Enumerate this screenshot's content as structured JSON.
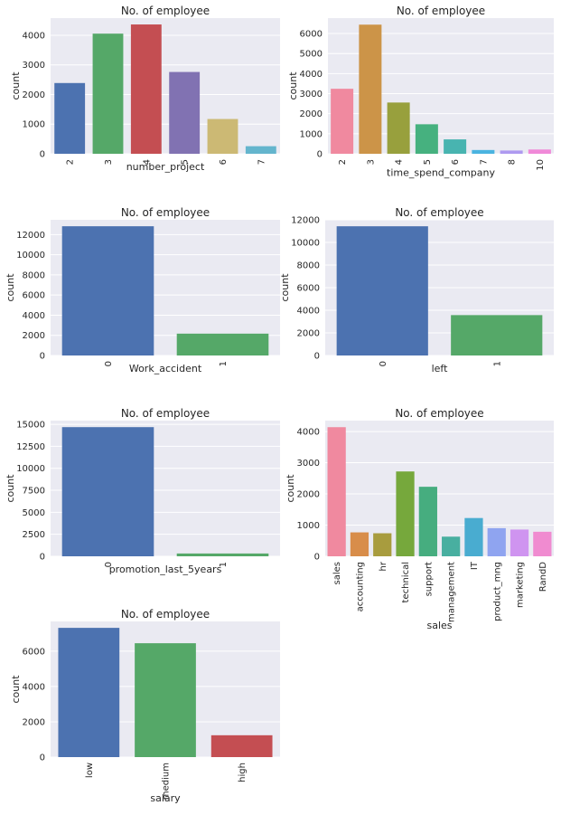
{
  "chart_data": [
    {
      "type": "bar",
      "title": "No. of employee",
      "xlabel": "number_project",
      "ylabel": "count",
      "categories": [
        "2",
        "3",
        "4",
        "5",
        "6",
        "7"
      ],
      "values": [
        2388,
        4055,
        4365,
        2761,
        1174,
        256
      ],
      "ylim": [
        0,
        4580
      ],
      "yticks": [
        0,
        1000,
        2000,
        3000,
        4000
      ],
      "colors": [
        "#4c72b0",
        "#55a868",
        "#c44e52",
        "#8172b2",
        "#ccb974",
        "#64b5cd"
      ],
      "grid": true
    },
    {
      "type": "bar",
      "title": "No. of employee",
      "xlabel": "time_spend_company",
      "ylabel": "count",
      "categories": [
        "2",
        "3",
        "4",
        "5",
        "6",
        "7",
        "8",
        "10"
      ],
      "values": [
        3244,
        6443,
        2557,
        1473,
        718,
        188,
        162,
        214
      ],
      "ylim": [
        0,
        6770
      ],
      "yticks": [
        0,
        1000,
        2000,
        3000,
        4000,
        5000,
        6000
      ],
      "colors": [
        "#f0899f",
        "#cc9448",
        "#98a03d",
        "#46b17f",
        "#48b4b0",
        "#4ab4e0",
        "#ae9af0",
        "#f089d8"
      ],
      "grid": true
    },
    {
      "type": "bar",
      "title": "No. of employee",
      "xlabel": "Work_accident",
      "ylabel": "count",
      "categories": [
        "0",
        "1"
      ],
      "values": [
        12830,
        2169
      ],
      "ylim": [
        0,
        13470
      ],
      "yticks": [
        0,
        2000,
        4000,
        6000,
        8000,
        10000,
        12000
      ],
      "colors": [
        "#4c72b0",
        "#55a868"
      ],
      "grid": true
    },
    {
      "type": "bar",
      "title": "No. of employee",
      "xlabel": "left",
      "ylabel": "count",
      "categories": [
        "0",
        "1"
      ],
      "values": [
        11428,
        3571
      ],
      "ylim": [
        0,
        12000
      ],
      "yticks": [
        0,
        2000,
        4000,
        6000,
        8000,
        10000,
        12000
      ],
      "colors": [
        "#4c72b0",
        "#55a868"
      ],
      "grid": true
    },
    {
      "type": "bar",
      "title": "No. of employee",
      "xlabel": "promotion_last_5years",
      "ylabel": "count",
      "categories": [
        "0",
        "1"
      ],
      "values": [
        14680,
        319
      ],
      "ylim": [
        0,
        15420
      ],
      "yticks": [
        0,
        2500,
        5000,
        7500,
        10000,
        12500,
        15000
      ],
      "ytick_labels": [
        "0",
        "2500",
        "5000",
        "7500",
        "10000",
        "12500",
        "15000"
      ],
      "colors": [
        "#4c72b0",
        "#55a868"
      ],
      "grid": true
    },
    {
      "type": "bar",
      "title": "No. of employee",
      "xlabel": "sales",
      "ylabel": "count",
      "categories": [
        "sales",
        "accounting",
        "hr",
        "technical",
        "support",
        "management",
        "IT",
        "product_mng",
        "marketing",
        "RandD"
      ],
      "values": [
        4140,
        767,
        739,
        2720,
        2229,
        630,
        1227,
        902,
        858,
        787
      ],
      "ylim": [
        0,
        4350
      ],
      "yticks": [
        0,
        1000,
        2000,
        3000,
        4000
      ],
      "colors": [
        "#f0899f",
        "#d88d4a",
        "#a89c3e",
        "#76a83c",
        "#46ad7f",
        "#48afa0",
        "#49acd0",
        "#8fa4f0",
        "#cf94f0",
        "#f08bd0"
      ],
      "grid": true
    },
    {
      "type": "bar",
      "title": "No. of employee",
      "xlabel": "salary",
      "ylabel": "count",
      "categories": [
        "low",
        "medium",
        "high"
      ],
      "values": [
        7316,
        6446,
        1237
      ],
      "ylim": [
        0,
        7680
      ],
      "yticks": [
        0,
        2000,
        4000,
        6000
      ],
      "colors": [
        "#4c72b0",
        "#55a868",
        "#c44e52"
      ],
      "grid": true
    }
  ]
}
